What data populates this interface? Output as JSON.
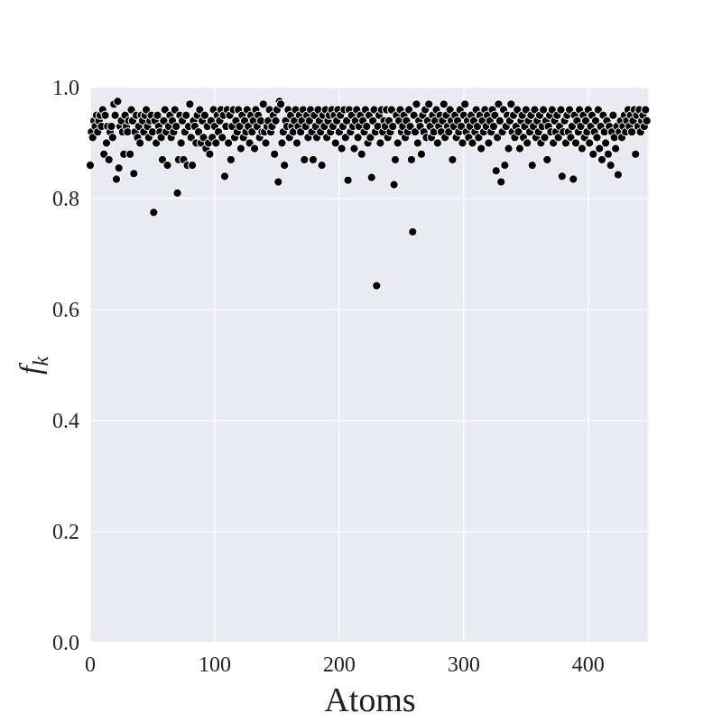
{
  "chart_data": {
    "type": "scatter",
    "xlabel": "Atoms",
    "ylabel": "f",
    "ylabel_subscript": "k",
    "xlim": [
      0,
      448
    ],
    "ylim": [
      0,
      1
    ],
    "xticks": [
      0,
      100,
      200,
      300,
      400
    ],
    "yticks": [
      {
        "value": 0,
        "label": "0.0"
      },
      {
        "value": 0.2,
        "label": "0.2"
      },
      {
        "value": 0.4,
        "label": "0.4"
      },
      {
        "value": 0.6,
        "label": "0.6"
      },
      {
        "value": 0.8,
        "label": "0.8"
      },
      {
        "value": 1,
        "label": "1.0"
      }
    ],
    "grid": true,
    "color": "#000000",
    "x": [
      0,
      1,
      2,
      3,
      4,
      5,
      6,
      7,
      8,
      9,
      10,
      11,
      12,
      13,
      14,
      15,
      16,
      17,
      18,
      19,
      20,
      21,
      22,
      23,
      24,
      25,
      26,
      27,
      28,
      29,
      30,
      31,
      32,
      33,
      34,
      35,
      36,
      37,
      38,
      39,
      40,
      41,
      42,
      43,
      44,
      45,
      46,
      47,
      48,
      49,
      50,
      51,
      52,
      53,
      54,
      55,
      56,
      57,
      58,
      59,
      60,
      61,
      62,
      63,
      64,
      65,
      66,
      67,
      68,
      69,
      70,
      71,
      72,
      73,
      74,
      75,
      76,
      77,
      78,
      79,
      80,
      81,
      82,
      83,
      84,
      85,
      86,
      87,
      88,
      89,
      90,
      91,
      92,
      93,
      94,
      95,
      96,
      97,
      98,
      99,
      100,
      101,
      102,
      103,
      104,
      105,
      106,
      107,
      108,
      109,
      110,
      111,
      112,
      113,
      114,
      115,
      116,
      117,
      118,
      119,
      120,
      121,
      122,
      123,
      124,
      125,
      126,
      127,
      128,
      129,
      130,
      131,
      132,
      133,
      134,
      135,
      136,
      137,
      138,
      139,
      140,
      141,
      142,
      143,
      144,
      145,
      146,
      147,
      148,
      149,
      150,
      151,
      152,
      153,
      154,
      155,
      156,
      157,
      158,
      159,
      160,
      161,
      162,
      163,
      164,
      165,
      166,
      167,
      168,
      169,
      170,
      171,
      172,
      173,
      174,
      175,
      176,
      177,
      178,
      179,
      180,
      181,
      182,
      183,
      184,
      185,
      186,
      187,
      188,
      189,
      190,
      191,
      192,
      193,
      194,
      195,
      196,
      197,
      198,
      199,
      200,
      201,
      202,
      203,
      204,
      205,
      206,
      207,
      208,
      209,
      210,
      211,
      212,
      213,
      214,
      215,
      216,
      217,
      218,
      219,
      220,
      221,
      222,
      223,
      224,
      225,
      226,
      227,
      228,
      229,
      230,
      231,
      232,
      233,
      234,
      235,
      236,
      237,
      238,
      239,
      240,
      241,
      242,
      243,
      244,
      245,
      246,
      247,
      248,
      249,
      250,
      251,
      252,
      253,
      254,
      255,
      256,
      257,
      258,
      259,
      260,
      261,
      262,
      263,
      264,
      265,
      266,
      267,
      268,
      269,
      270,
      271,
      272,
      273,
      274,
      275,
      276,
      277,
      278,
      279,
      280,
      281,
      282,
      283,
      284,
      285,
      286,
      287,
      288,
      289,
      290,
      291,
      292,
      293,
      294,
      295,
      296,
      297,
      298,
      299,
      300,
      301,
      302,
      303,
      304,
      305,
      306,
      307,
      308,
      309,
      310,
      311,
      312,
      313,
      314,
      315,
      316,
      317,
      318,
      319,
      320,
      321,
      322,
      323,
      324,
      325,
      326,
      327,
      328,
      329,
      330,
      331,
      332,
      333,
      334,
      335,
      336,
      337,
      338,
      339,
      340,
      341,
      342,
      343,
      344,
      345,
      346,
      347,
      348,
      349,
      350,
      351,
      352,
      353,
      354,
      355,
      356,
      357,
      358,
      359,
      360,
      361,
      362,
      363,
      364,
      365,
      366,
      367,
      368,
      369,
      370,
      371,
      372,
      373,
      374,
      375,
      376,
      377,
      378,
      379,
      380,
      381,
      382,
      383,
      384,
      385,
      386,
      387,
      388,
      389,
      390,
      391,
      392,
      393,
      394,
      395,
      396,
      397,
      398,
      399,
      400,
      401,
      402,
      403,
      404,
      405,
      406,
      407,
      408,
      409,
      410,
      411,
      412,
      413,
      414,
      415,
      416,
      417,
      418,
      419,
      420,
      421,
      422,
      423,
      424,
      425,
      426,
      427,
      428,
      429,
      430,
      431,
      432,
      433,
      434,
      435,
      436,
      437,
      438,
      439,
      440,
      441,
      442,
      443,
      444,
      445,
      446,
      447
    ],
    "values": [
      0.86,
      0.92,
      0.91,
      0.94,
      0.93,
      0.95,
      0.92,
      0.94,
      0.95,
      0.93,
      0.96,
      0.88,
      0.95,
      0.9,
      0.93,
      0.87,
      0.92,
      0.93,
      0.91,
      0.97,
      0.95,
      0.835,
      0.975,
      0.855,
      0.93,
      0.94,
      0.92,
      0.88,
      0.95,
      0.93,
      0.92,
      0.94,
      0.88,
      0.96,
      0.94,
      0.845,
      0.92,
      0.95,
      0.91,
      0.93,
      0.9,
      0.95,
      0.94,
      0.92,
      0.95,
      0.96,
      0.93,
      0.91,
      0.94,
      0.95,
      0.92,
      0.775,
      0.94,
      0.9,
      0.95,
      0.93,
      0.92,
      0.91,
      0.87,
      0.94,
      0.96,
      0.92,
      0.86,
      0.93,
      0.95,
      0.91,
      0.94,
      0.92,
      0.96,
      0.93,
      0.81,
      0.87,
      0.95,
      0.9,
      0.94,
      0.87,
      0.92,
      0.95,
      0.86,
      0.93,
      0.97,
      0.91,
      0.86,
      0.94,
      0.93,
      0.9,
      0.95,
      0.92,
      0.96,
      0.9,
      0.94,
      0.91,
      0.95,
      0.89,
      0.93,
      0.9,
      0.88,
      0.94,
      0.91,
      0.96,
      0.93,
      0.9,
      0.95,
      0.92,
      0.94,
      0.96,
      0.91,
      0.95,
      0.84,
      0.93,
      0.96,
      0.9,
      0.95,
      0.87,
      0.93,
      0.96,
      0.91,
      0.94,
      0.92,
      0.96,
      0.93,
      0.89,
      0.95,
      0.91,
      0.94,
      0.92,
      0.96,
      0.93,
      0.9,
      0.95,
      0.92,
      0.94,
      0.89,
      0.96,
      0.93,
      0.95,
      0.91,
      0.94,
      0.92,
      0.97,
      0.92,
      0.9,
      0.93,
      0.94,
      0.96,
      0.92,
      0.93,
      0.95,
      0.88,
      0.94,
      0.96,
      0.83,
      0.975,
      0.97,
      0.9,
      0.92,
      0.86,
      0.94,
      0.93,
      0.96,
      0.91,
      0.95,
      0.93,
      0.92,
      0.94,
      0.96,
      0.9,
      0.93,
      0.95,
      0.92,
      0.94,
      0.96,
      0.87,
      0.93,
      0.95,
      0.91,
      0.94,
      0.96,
      0.92,
      0.87,
      0.95,
      0.93,
      0.91,
      0.96,
      0.94,
      0.92,
      0.86,
      0.95,
      0.93,
      0.96,
      0.91,
      0.94,
      0.95,
      0.92,
      0.96,
      0.93,
      0.95,
      0.9,
      0.94,
      0.96,
      0.92,
      0.95,
      0.89,
      0.93,
      0.96,
      0.91,
      0.94,
      0.833,
      0.96,
      0.92,
      0.95,
      0.93,
      0.89,
      0.94,
      0.96,
      0.91,
      0.93,
      0.95,
      0.88,
      0.94,
      0.92,
      0.96,
      0.93,
      0.9,
      0.95,
      0.91,
      0.838,
      0.94,
      0.96,
      0.92,
      0.643,
      0.93,
      0.95,
      0.9,
      0.96,
      0.92,
      0.94,
      0.93,
      0.96,
      0.91,
      0.94,
      0.92,
      0.96,
      0.93,
      0.825,
      0.87,
      0.95,
      0.9,
      0.94,
      0.96,
      0.92,
      0.93,
      0.95,
      0.91,
      0.94,
      0.92,
      0.96,
      0.93,
      0.87,
      0.74,
      0.95,
      0.92,
      0.97,
      0.9,
      0.94,
      0.93,
      0.88,
      0.95,
      0.92,
      0.96,
      0.91,
      0.94,
      0.97,
      0.93,
      0.91,
      0.95,
      0.92,
      0.94,
      0.96,
      0.9,
      0.93,
      0.95,
      0.92,
      0.94,
      0.97,
      0.91,
      0.95,
      0.93,
      0.92,
      0.96,
      0.94,
      0.87,
      0.93,
      0.95,
      0.91,
      0.94,
      0.92,
      0.96,
      0.93,
      0.9,
      0.95,
      0.97,
      0.92,
      0.94,
      0.91,
      0.93,
      0.95,
      0.9,
      0.94,
      0.92,
      0.96,
      0.93,
      0.91,
      0.95,
      0.89,
      0.94,
      0.92,
      0.96,
      0.93,
      0.95,
      0.9,
      0.94,
      0.92,
      0.96,
      0.93,
      0.95,
      0.85,
      0.91,
      0.97,
      0.94,
      0.83,
      0.92,
      0.96,
      0.86,
      0.93,
      0.95,
      0.89,
      0.94,
      0.97,
      0.92,
      0.95,
      0.91,
      0.93,
      0.96,
      0.92,
      0.89,
      0.94,
      0.95,
      0.91,
      0.93,
      0.96,
      0.9,
      0.94,
      0.92,
      0.95,
      0.86,
      0.93,
      0.96,
      0.91,
      0.94,
      0.92,
      0.95,
      0.9,
      0.93,
      0.96,
      0.91,
      0.94,
      0.87,
      0.93,
      0.95,
      0.92,
      0.96,
      0.9,
      0.94,
      0.92,
      0.95,
      0.91,
      0.93,
      0.96,
      0.84,
      0.92,
      0.94,
      0.9,
      0.95,
      0.92,
      0.96,
      0.91,
      0.93,
      0.835,
      0.95,
      0.9,
      0.94,
      0.92,
      0.96,
      0.93,
      0.89,
      0.95,
      0.91,
      0.94,
      0.92,
      0.96,
      0.9,
      0.93,
      0.95,
      0.88,
      0.92,
      0.94,
      0.91,
      0.96,
      0.89,
      0.93,
      0.87,
      0.95,
      0.92,
      0.9,
      0.94,
      0.88,
      0.93,
      0.86,
      0.92,
      0.95,
      0.91,
      0.89,
      0.93,
      0.843,
      0.92,
      0.94,
      0.91,
      0.93,
      0.95,
      0.92,
      0.94,
      0.96,
      0.93,
      0.95,
      0.92,
      0.94,
      0.96,
      0.88,
      0.95,
      0.93,
      0.96,
      0.92,
      0.94,
      0.95,
      0.93,
      0.96,
      0.94
    ]
  }
}
